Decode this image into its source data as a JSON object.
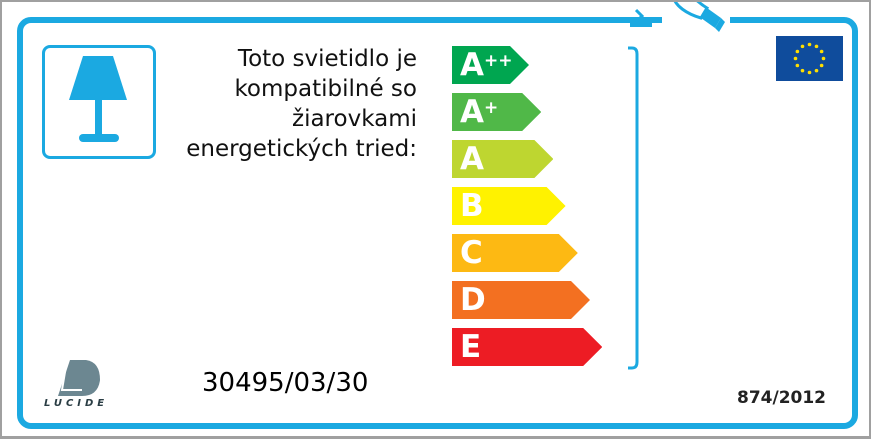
{
  "label": {
    "text_lines": [
      "Toto svietidlo je",
      "kompatibilné so",
      "žiarovkami",
      "energetických tried:"
    ],
    "classes": [
      {
        "letter": "A",
        "sup": "++",
        "color": "#00a650"
      },
      {
        "letter": "A",
        "sup": "+",
        "color": "#50b848"
      },
      {
        "letter": "A",
        "sup": "",
        "color": "#bed630"
      },
      {
        "letter": "B",
        "sup": "",
        "color": "#fff200"
      },
      {
        "letter": "C",
        "sup": "",
        "color": "#fdb913"
      },
      {
        "letter": "D",
        "sup": "",
        "color": "#f37021"
      },
      {
        "letter": "E",
        "sup": "",
        "color": "#ed1c24"
      }
    ],
    "product_code": "30495/03/30",
    "regulation": "874/2012",
    "brand_logo": "LUCIDE",
    "accent_color": "#1ba9e1",
    "icons": [
      "table-lamp-icon",
      "light-bulb-icon",
      "eu-flag-icon"
    ]
  }
}
